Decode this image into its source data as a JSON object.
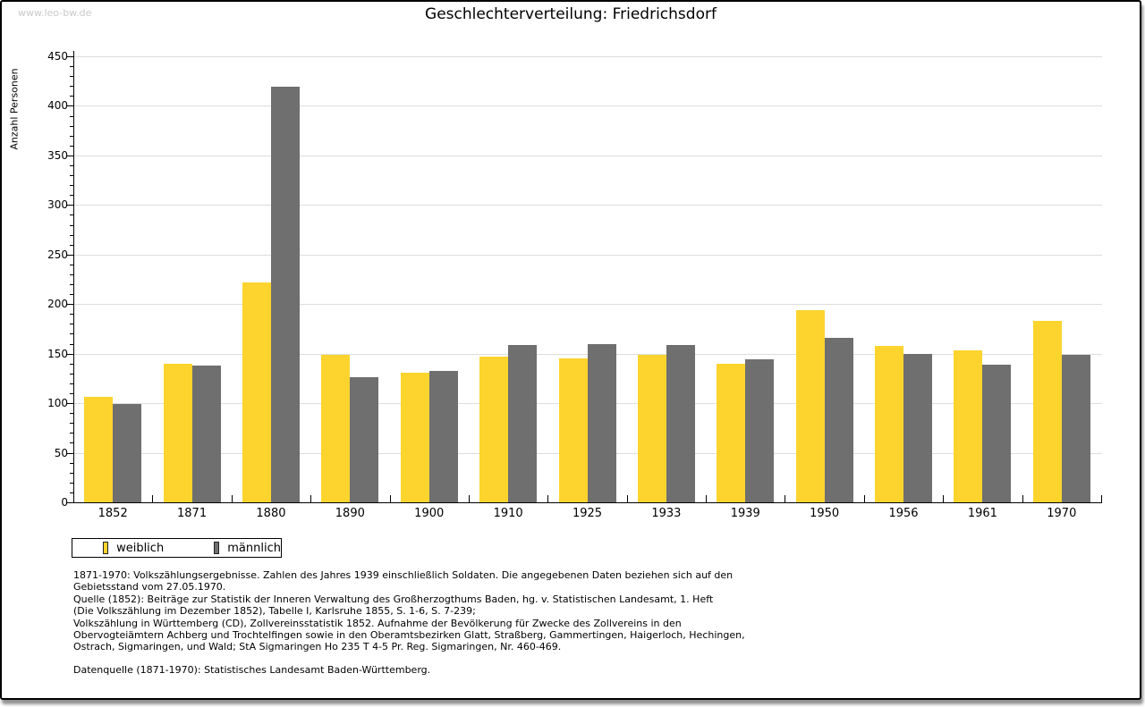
{
  "page": {
    "watermark": "www.leo-bw.de",
    "title": "Geschlechterverteilung: Friedrichsdorf"
  },
  "chart_data": {
    "type": "bar",
    "title": "Geschlechterverteilung: Friedrichsdorf",
    "xlabel": "",
    "ylabel": "Anzahl Personen",
    "ylim": [
      0,
      450
    ],
    "ytick_step": 50,
    "yticks": [
      0,
      50,
      100,
      150,
      200,
      250,
      300,
      350,
      400,
      450
    ],
    "grid": true,
    "legend_position": "bottom-left",
    "categories": [
      "1852",
      "1871",
      "1880",
      "1890",
      "1900",
      "1910",
      "1925",
      "1933",
      "1939",
      "1950",
      "1956",
      "1961",
      "1970"
    ],
    "series": [
      {
        "name": "weiblich",
        "color": "#FCD42D",
        "values": [
          106,
          140,
          222,
          149,
          131,
          147,
          145,
          149,
          140,
          194,
          158,
          153,
          183
        ]
      },
      {
        "name": "männlich",
        "color": "#6F6F6F",
        "values": [
          99,
          138,
          419,
          126,
          133,
          159,
          160,
          159,
          144,
          166,
          150,
          139,
          149
        ]
      }
    ]
  },
  "legend": {
    "items": [
      {
        "label": "weiblich",
        "color": "#FCD42D"
      },
      {
        "label": "männlich",
        "color": "#6F6F6F"
      }
    ]
  },
  "footnotes": {
    "lines": [
      "1871-1970: Volkszählungsergebnisse. Zahlen des Jahres 1939 einschließlich Soldaten. Die angegebenen Daten beziehen sich auf den",
      "Gebietsstand vom 27.05.1970.",
      "Quelle (1852): Beiträge zur Statistik der Inneren Verwaltung des Großherzogthums Baden, hg. v. Statistischen Landesamt, 1. Heft",
      "(Die Volkszählung im Dezember 1852), Tabelle I, Karlsruhe 1855, S. 1-6, S. 7-239;",
      "Volkszählung in Württemberg (CD), Zollvereinsstatistik 1852. Aufnahme der Bevölkerung für Zwecke des Zollvereins in den",
      "Obervogteiämtern Achberg und Trochtelfingen sowie in den Oberamtsbezirken Glatt, Straßberg, Gammertingen, Haigerloch, Hechingen,",
      "Ostrach, Sigmaringen, und Wald; StA Sigmaringen Ho 235 T 4-5 Pr. Reg. Sigmaringen, Nr. 460-469."
    ],
    "datasource": "Datenquelle (1871-1970): Statistisches Landesamt Baden-Württemberg."
  }
}
